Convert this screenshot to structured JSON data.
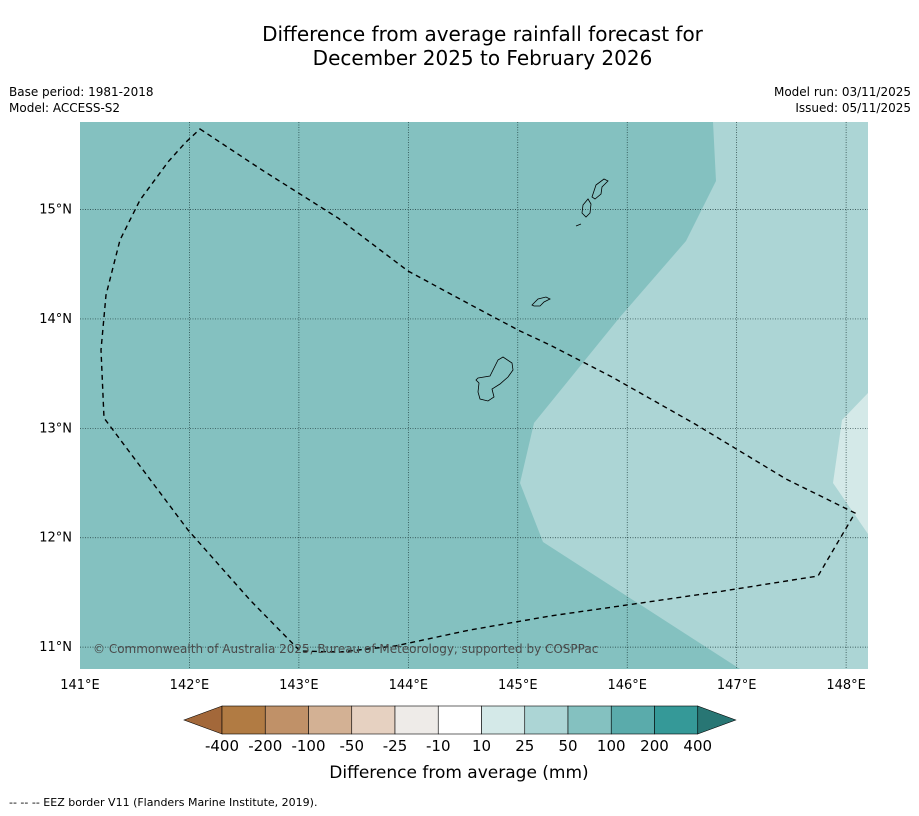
{
  "title": {
    "line1": "Difference from average rainfall forecast for",
    "line2": "December 2025 to February 2026"
  },
  "meta_left": {
    "base_period": "Base period: 1981-2018",
    "model": "Model: ACCESS-S2"
  },
  "meta_right": {
    "model_run": "Model run: 03/11/2025",
    "issued": "Issued: 05/11/2025"
  },
  "map": {
    "lat_labels": [
      "15°N",
      "14°N",
      "13°N",
      "12°N",
      "11°N"
    ],
    "lon_labels": [
      "141°E",
      "142°E",
      "143°E",
      "144°E",
      "145°E",
      "146°E",
      "147°E",
      "148°E"
    ],
    "lon_range": [
      141.0,
      148.2
    ],
    "lat_range": [
      10.8,
      15.8
    ],
    "copyright": "© Commonwealth of Australia 2025, Bureau of Meteorology, supported by COSPPac",
    "region_colors": {
      "band_50_100": "#84c1c0",
      "band_25_50": "#acd5d5",
      "band_10_25": "#d4e9e8"
    }
  },
  "colorbar": {
    "title": "Difference from average (mm)",
    "labels": [
      "-400",
      "-200",
      "-100",
      "-50",
      "-25",
      "-10",
      "10",
      "25",
      "50",
      "100",
      "200",
      "400"
    ],
    "colors": [
      "#a3683a",
      "#b17b43",
      "#c09168",
      "#d3b194",
      "#e6d1c1",
      "#eeebe8",
      "#ffffff",
      "#d4e9e8",
      "#acd5d5",
      "#84c1c0",
      "#5aabab",
      "#359998",
      "#287674"
    ]
  },
  "footer": "-- -- -- EEZ border V11 (Flanders Marine Institute, 2019)."
}
